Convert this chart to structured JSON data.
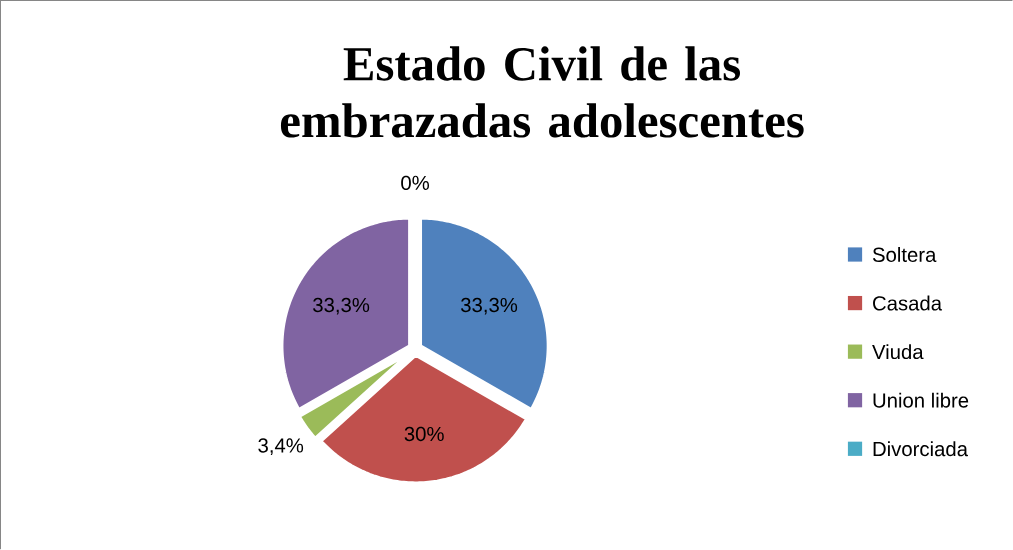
{
  "chart_data": {
    "type": "pie",
    "title": "Estado Civil de las embrazadas adolescentes",
    "categories": [
      "Soltera",
      "Casada",
      "Viuda",
      "Union libre",
      "Divorciada"
    ],
    "values": [
      33.3,
      30,
      3.4,
      33.3,
      0
    ],
    "colors": [
      "#4f81bd",
      "#c0504d",
      "#9bbb59",
      "#8064a2",
      "#4bacc6"
    ],
    "value_labels": [
      "33,3%",
      "30%",
      "3,4%",
      "33,3%",
      "0%"
    ],
    "legend": "right"
  }
}
